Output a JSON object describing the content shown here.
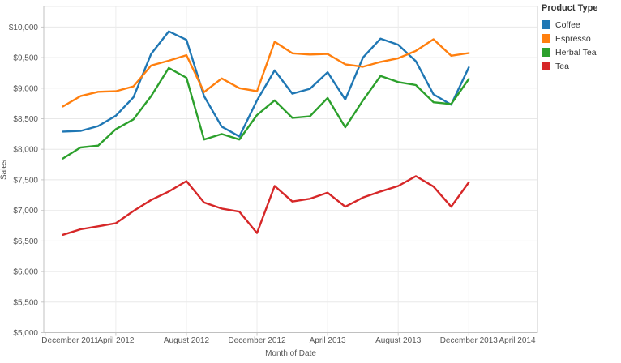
{
  "legend": {
    "title": "Product Type",
    "items": [
      {
        "label": "Coffee",
        "color": "#1F77B4"
      },
      {
        "label": "Espresso",
        "color": "#FF7F0E"
      },
      {
        "label": "Herbal Tea",
        "color": "#2CA02C"
      },
      {
        "label": "Tea",
        "color": "#D62728"
      }
    ]
  },
  "axes": {
    "y_title": "Sales",
    "x_title": "Month of Date",
    "y_tick_labels": [
      "$5,000",
      "$5,500",
      "$6,000",
      "$6,500",
      "$7,000",
      "$7,500",
      "$8,000",
      "$8,500",
      "$9,000",
      "$9,500",
      "$10,000"
    ],
    "x_tick_labels": [
      "December 2011",
      "April 2012",
      "August 2012",
      "December 2012",
      "April 2013",
      "August 2013",
      "December 2013",
      "April 2014"
    ]
  },
  "chart_data": {
    "type": "line",
    "title": "",
    "xlabel": "Month of Date",
    "ylabel": "Sales",
    "ylim": [
      5000,
      10340
    ],
    "xlim_months": [
      "December 2011",
      "May 2014"
    ],
    "grid": true,
    "legend_position": "right",
    "x": [
      "Jan 2012",
      "Feb 2012",
      "Mar 2012",
      "Apr 2012",
      "May 2012",
      "Jun 2012",
      "Jul 2012",
      "Aug 2012",
      "Sep 2012",
      "Oct 2012",
      "Nov 2012",
      "Dec 2012",
      "Jan 2013",
      "Feb 2013",
      "Mar 2013",
      "Apr 2013",
      "May 2013",
      "Jun 2013",
      "Jul 2013",
      "Aug 2013",
      "Sep 2013",
      "Oct 2013",
      "Nov 2013",
      "Dec 2013"
    ],
    "series": [
      {
        "name": "Coffee",
        "color": "#1F77B4",
        "values": [
          8290,
          8300,
          8380,
          8550,
          8850,
          9560,
          9930,
          9790,
          8870,
          8370,
          8210,
          8800,
          9290,
          8910,
          8990,
          9260,
          8815,
          9500,
          9810,
          9710,
          9440,
          8900,
          8730,
          9340
        ]
      },
      {
        "name": "Espresso",
        "color": "#FF7F0E",
        "values": [
          8700,
          8870,
          8940,
          8950,
          9030,
          9370,
          9450,
          9540,
          8935,
          9160,
          9000,
          8950,
          9760,
          9570,
          9550,
          9560,
          9390,
          9350,
          9430,
          9490,
          9610,
          9800,
          9530,
          9575
        ]
      },
      {
        "name": "Herbal Tea",
        "color": "#2CA02C",
        "values": [
          7850,
          8030,
          8060,
          8330,
          8490,
          8870,
          9330,
          9170,
          8160,
          8250,
          8160,
          8560,
          8800,
          8515,
          8540,
          8840,
          8360,
          8800,
          9200,
          9100,
          9050,
          8770,
          8740,
          9150
        ]
      },
      {
        "name": "Tea",
        "color": "#D62728",
        "values": [
          6600,
          6690,
          6740,
          6790,
          6990,
          7170,
          7310,
          7480,
          7130,
          7030,
          6980,
          6630,
          7400,
          7145,
          7190,
          7290,
          7060,
          7210,
          7310,
          7400,
          7560,
          7390,
          7060,
          7460
        ]
      }
    ]
  }
}
